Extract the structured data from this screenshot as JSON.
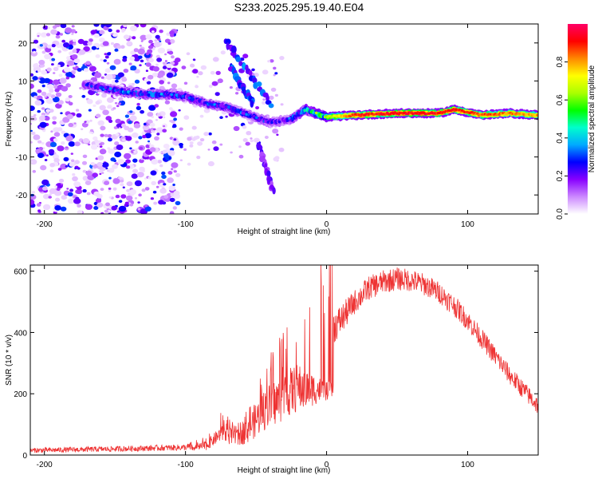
{
  "title": "S233.2025.295.19.40.E04",
  "chart_data": [
    {
      "type": "heatmap",
      "title": "S233.2025.295.19.40.E04",
      "xlabel": "Height of straight line (km)",
      "ylabel": "Frequency (Hz)",
      "xlim": [
        -210,
        150
      ],
      "ylim": [
        -25,
        25
      ],
      "xticks": [
        -200,
        -100,
        0,
        100
      ],
      "yticks": [
        -20,
        -10,
        0,
        10,
        20
      ],
      "colorbar": {
        "label": "Normalized spectral amplitude",
        "range": [
          0,
          1
        ],
        "ticks": [
          0.0,
          0.2,
          0.4,
          0.6,
          0.8
        ],
        "stops": [
          "#ffffff",
          "#cc88ff",
          "#8800ff",
          "#0000ff",
          "#00aaff",
          "#00ffcc",
          "#00ff00",
          "#aaff00",
          "#ffff00",
          "#ff8800",
          "#ff0000",
          "#ff0066"
        ]
      },
      "ridge": [
        {
          "x": -170,
          "f": 9
        },
        {
          "x": -150,
          "f": 7.5
        },
        {
          "x": -130,
          "f": 6.5
        },
        {
          "x": -115,
          "f": 6.5
        },
        {
          "x": -100,
          "f": 6
        },
        {
          "x": -85,
          "f": 4
        },
        {
          "x": -70,
          "f": 3
        },
        {
          "x": -55,
          "f": 1
        },
        {
          "x": -40,
          "f": -1
        },
        {
          "x": -25,
          "f": 0
        },
        {
          "x": -15,
          "f": 2.5
        },
        {
          "x": 0,
          "f": 0.5
        },
        {
          "x": 20,
          "f": 1
        },
        {
          "x": 50,
          "f": 1.5
        },
        {
          "x": 80,
          "f": 1.5
        },
        {
          "x": 90,
          "f": 2.5
        },
        {
          "x": 110,
          "f": 1
        },
        {
          "x": 130,
          "f": 1.5
        },
        {
          "x": 150,
          "f": 1
        }
      ],
      "ridge_amplitude": [
        {
          "x": -170,
          "a": 0.25
        },
        {
          "x": -130,
          "a": 0.35
        },
        {
          "x": -100,
          "a": 0.3
        },
        {
          "x": -60,
          "a": 0.3
        },
        {
          "x": -30,
          "a": 0.25
        },
        {
          "x": -10,
          "a": 0.5
        },
        {
          "x": 20,
          "a": 0.9
        },
        {
          "x": 60,
          "a": 0.95
        },
        {
          "x": 90,
          "a": 0.92
        },
        {
          "x": 120,
          "a": 0.85
        },
        {
          "x": 150,
          "a": 0.8
        }
      ],
      "branches": [
        {
          "from": [
            -72,
            21
          ],
          "to": [
            -40,
            4
          ],
          "a": 0.3
        },
        {
          "from": [
            -68,
            14
          ],
          "to": [
            -52,
            4
          ],
          "a": 0.3
        },
        {
          "from": [
            -48,
            -7
          ],
          "to": [
            -38,
            -19
          ],
          "a": 0.2
        }
      ]
    },
    {
      "type": "line",
      "xlabel": "Height of straight line (km)",
      "ylabel": "SNR (10 * v/v)",
      "xlim": [
        -210,
        150
      ],
      "ylim": [
        0,
        620
      ],
      "xticks": [
        -200,
        -100,
        0,
        100
      ],
      "yticks": [
        0,
        200,
        400,
        600
      ],
      "color": "#ee3333",
      "envelope": [
        {
          "x": -210,
          "y": 15
        },
        {
          "x": -150,
          "y": 20
        },
        {
          "x": -100,
          "y": 25
        },
        {
          "x": -85,
          "y": 35
        },
        {
          "x": -75,
          "y": 100
        },
        {
          "x": -65,
          "y": 60
        },
        {
          "x": -55,
          "y": 90
        },
        {
          "x": -45,
          "y": 170
        },
        {
          "x": -35,
          "y": 220
        },
        {
          "x": -25,
          "y": 290
        },
        {
          "x": -15,
          "y": 330
        },
        {
          "x": -5,
          "y": 380
        },
        {
          "x": 0,
          "y": 395
        },
        {
          "x": 10,
          "y": 440
        },
        {
          "x": 20,
          "y": 500
        },
        {
          "x": 30,
          "y": 545
        },
        {
          "x": 40,
          "y": 565
        },
        {
          "x": 50,
          "y": 575
        },
        {
          "x": 60,
          "y": 570
        },
        {
          "x": 70,
          "y": 555
        },
        {
          "x": 80,
          "y": 530
        },
        {
          "x": 90,
          "y": 490
        },
        {
          "x": 100,
          "y": 440
        },
        {
          "x": 110,
          "y": 380
        },
        {
          "x": 120,
          "y": 320
        },
        {
          "x": 130,
          "y": 260
        },
        {
          "x": 140,
          "y": 210
        },
        {
          "x": 150,
          "y": 160
        }
      ],
      "noise_profile": [
        {
          "x": -210,
          "n": 8
        },
        {
          "x": -100,
          "n": 10
        },
        {
          "x": -80,
          "n": 40
        },
        {
          "x": -60,
          "n": 80
        },
        {
          "x": -40,
          "n": 150
        },
        {
          "x": -20,
          "n": 160
        },
        {
          "x": 0,
          "n": 60
        },
        {
          "x": 20,
          "n": 40
        },
        {
          "x": 150,
          "n": 30
        }
      ]
    }
  ]
}
